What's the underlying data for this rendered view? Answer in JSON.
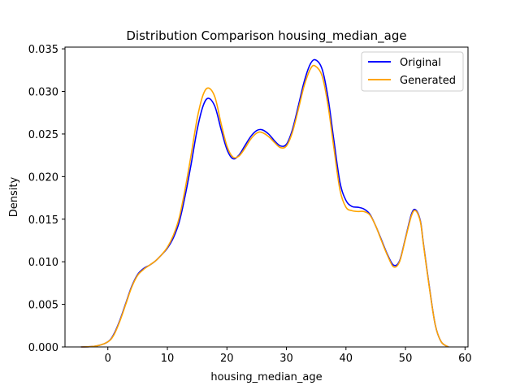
{
  "chart_data": {
    "type": "line",
    "title": "Distribution Comparison housing_median_age",
    "xlabel": "housing_median_age",
    "ylabel": "Density",
    "xlim": [
      -7.2,
      60.5
    ],
    "ylim": [
      0,
      0.0352
    ],
    "xticks": [
      0,
      10,
      20,
      30,
      40,
      50,
      60
    ],
    "yticks": [
      0.0,
      0.005,
      0.01,
      0.015,
      0.02,
      0.025,
      0.03,
      0.035
    ],
    "ytick_labels": [
      "0.000",
      "0.005",
      "0.010",
      "0.015",
      "0.020",
      "0.025",
      "0.030",
      "0.035"
    ],
    "grid": false,
    "legend_position": "top-right",
    "series": [
      {
        "name": "Original",
        "color": "#0000ff",
        "x": [
          -4.5,
          -2,
          0,
          1,
          2,
          3,
          4,
          5,
          6,
          7,
          8,
          9,
          10,
          11,
          12,
          13,
          14,
          15,
          16,
          16.9,
          18,
          19,
          20,
          21,
          22,
          23,
          24,
          25,
          25.9,
          27,
          28,
          29,
          30,
          31,
          32,
          33,
          34,
          34.9,
          36,
          37,
          38,
          39,
          40,
          41,
          42,
          43,
          44,
          45,
          46,
          47,
          48,
          49,
          50,
          51,
          51.7,
          52.5,
          53,
          54,
          55,
          56,
          57.2
        ],
        "y": [
          0.0,
          0.0001,
          0.0006,
          0.0015,
          0.0031,
          0.0051,
          0.0071,
          0.0085,
          0.0092,
          0.0096,
          0.0101,
          0.0108,
          0.0116,
          0.0128,
          0.0147,
          0.0178,
          0.0215,
          0.0255,
          0.0283,
          0.0292,
          0.0282,
          0.0256,
          0.0232,
          0.0221,
          0.0225,
          0.0236,
          0.0247,
          0.0254,
          0.0255,
          0.025,
          0.0242,
          0.0236,
          0.0238,
          0.0255,
          0.0283,
          0.0312,
          0.0332,
          0.0337,
          0.0326,
          0.0292,
          0.0241,
          0.0193,
          0.0172,
          0.0165,
          0.0164,
          0.0162,
          0.0156,
          0.0142,
          0.0125,
          0.0108,
          0.0096,
          0.0101,
          0.0128,
          0.0156,
          0.0161,
          0.0148,
          0.0122,
          0.0071,
          0.0026,
          0.0006,
          0.0
        ]
      },
      {
        "name": "Generated",
        "color": "#ffa500",
        "x": [
          -4.5,
          -2,
          0,
          1,
          2,
          3,
          4,
          5,
          6,
          7,
          8,
          9,
          10,
          11,
          12,
          13,
          14,
          15,
          16,
          16.9,
          18,
          19,
          20,
          21,
          22,
          23,
          24,
          25,
          25.8,
          27,
          28,
          29,
          30,
          31,
          32,
          33,
          34,
          34.8,
          36,
          37,
          38,
          39,
          40,
          41,
          42,
          43,
          44,
          45,
          46,
          47,
          48,
          49,
          50,
          51,
          51.7,
          52.5,
          53,
          54,
          55,
          56,
          57.2
        ],
        "y": [
          0.0,
          0.0001,
          0.0006,
          0.0014,
          0.003,
          0.005,
          0.007,
          0.0084,
          0.0091,
          0.0096,
          0.0101,
          0.0108,
          0.0117,
          0.0131,
          0.0152,
          0.0186,
          0.0226,
          0.0268,
          0.0296,
          0.0304,
          0.0293,
          0.0263,
          0.0236,
          0.0223,
          0.0224,
          0.0233,
          0.0244,
          0.0251,
          0.0252,
          0.0247,
          0.024,
          0.0234,
          0.0236,
          0.0252,
          0.0279,
          0.0307,
          0.0326,
          0.033,
          0.0318,
          0.0283,
          0.0232,
          0.0184,
          0.0164,
          0.016,
          0.0159,
          0.0159,
          0.0155,
          0.0142,
          0.0124,
          0.0107,
          0.0094,
          0.01,
          0.0127,
          0.0154,
          0.016,
          0.0147,
          0.0121,
          0.007,
          0.0026,
          0.0006,
          0.0
        ]
      }
    ]
  }
}
